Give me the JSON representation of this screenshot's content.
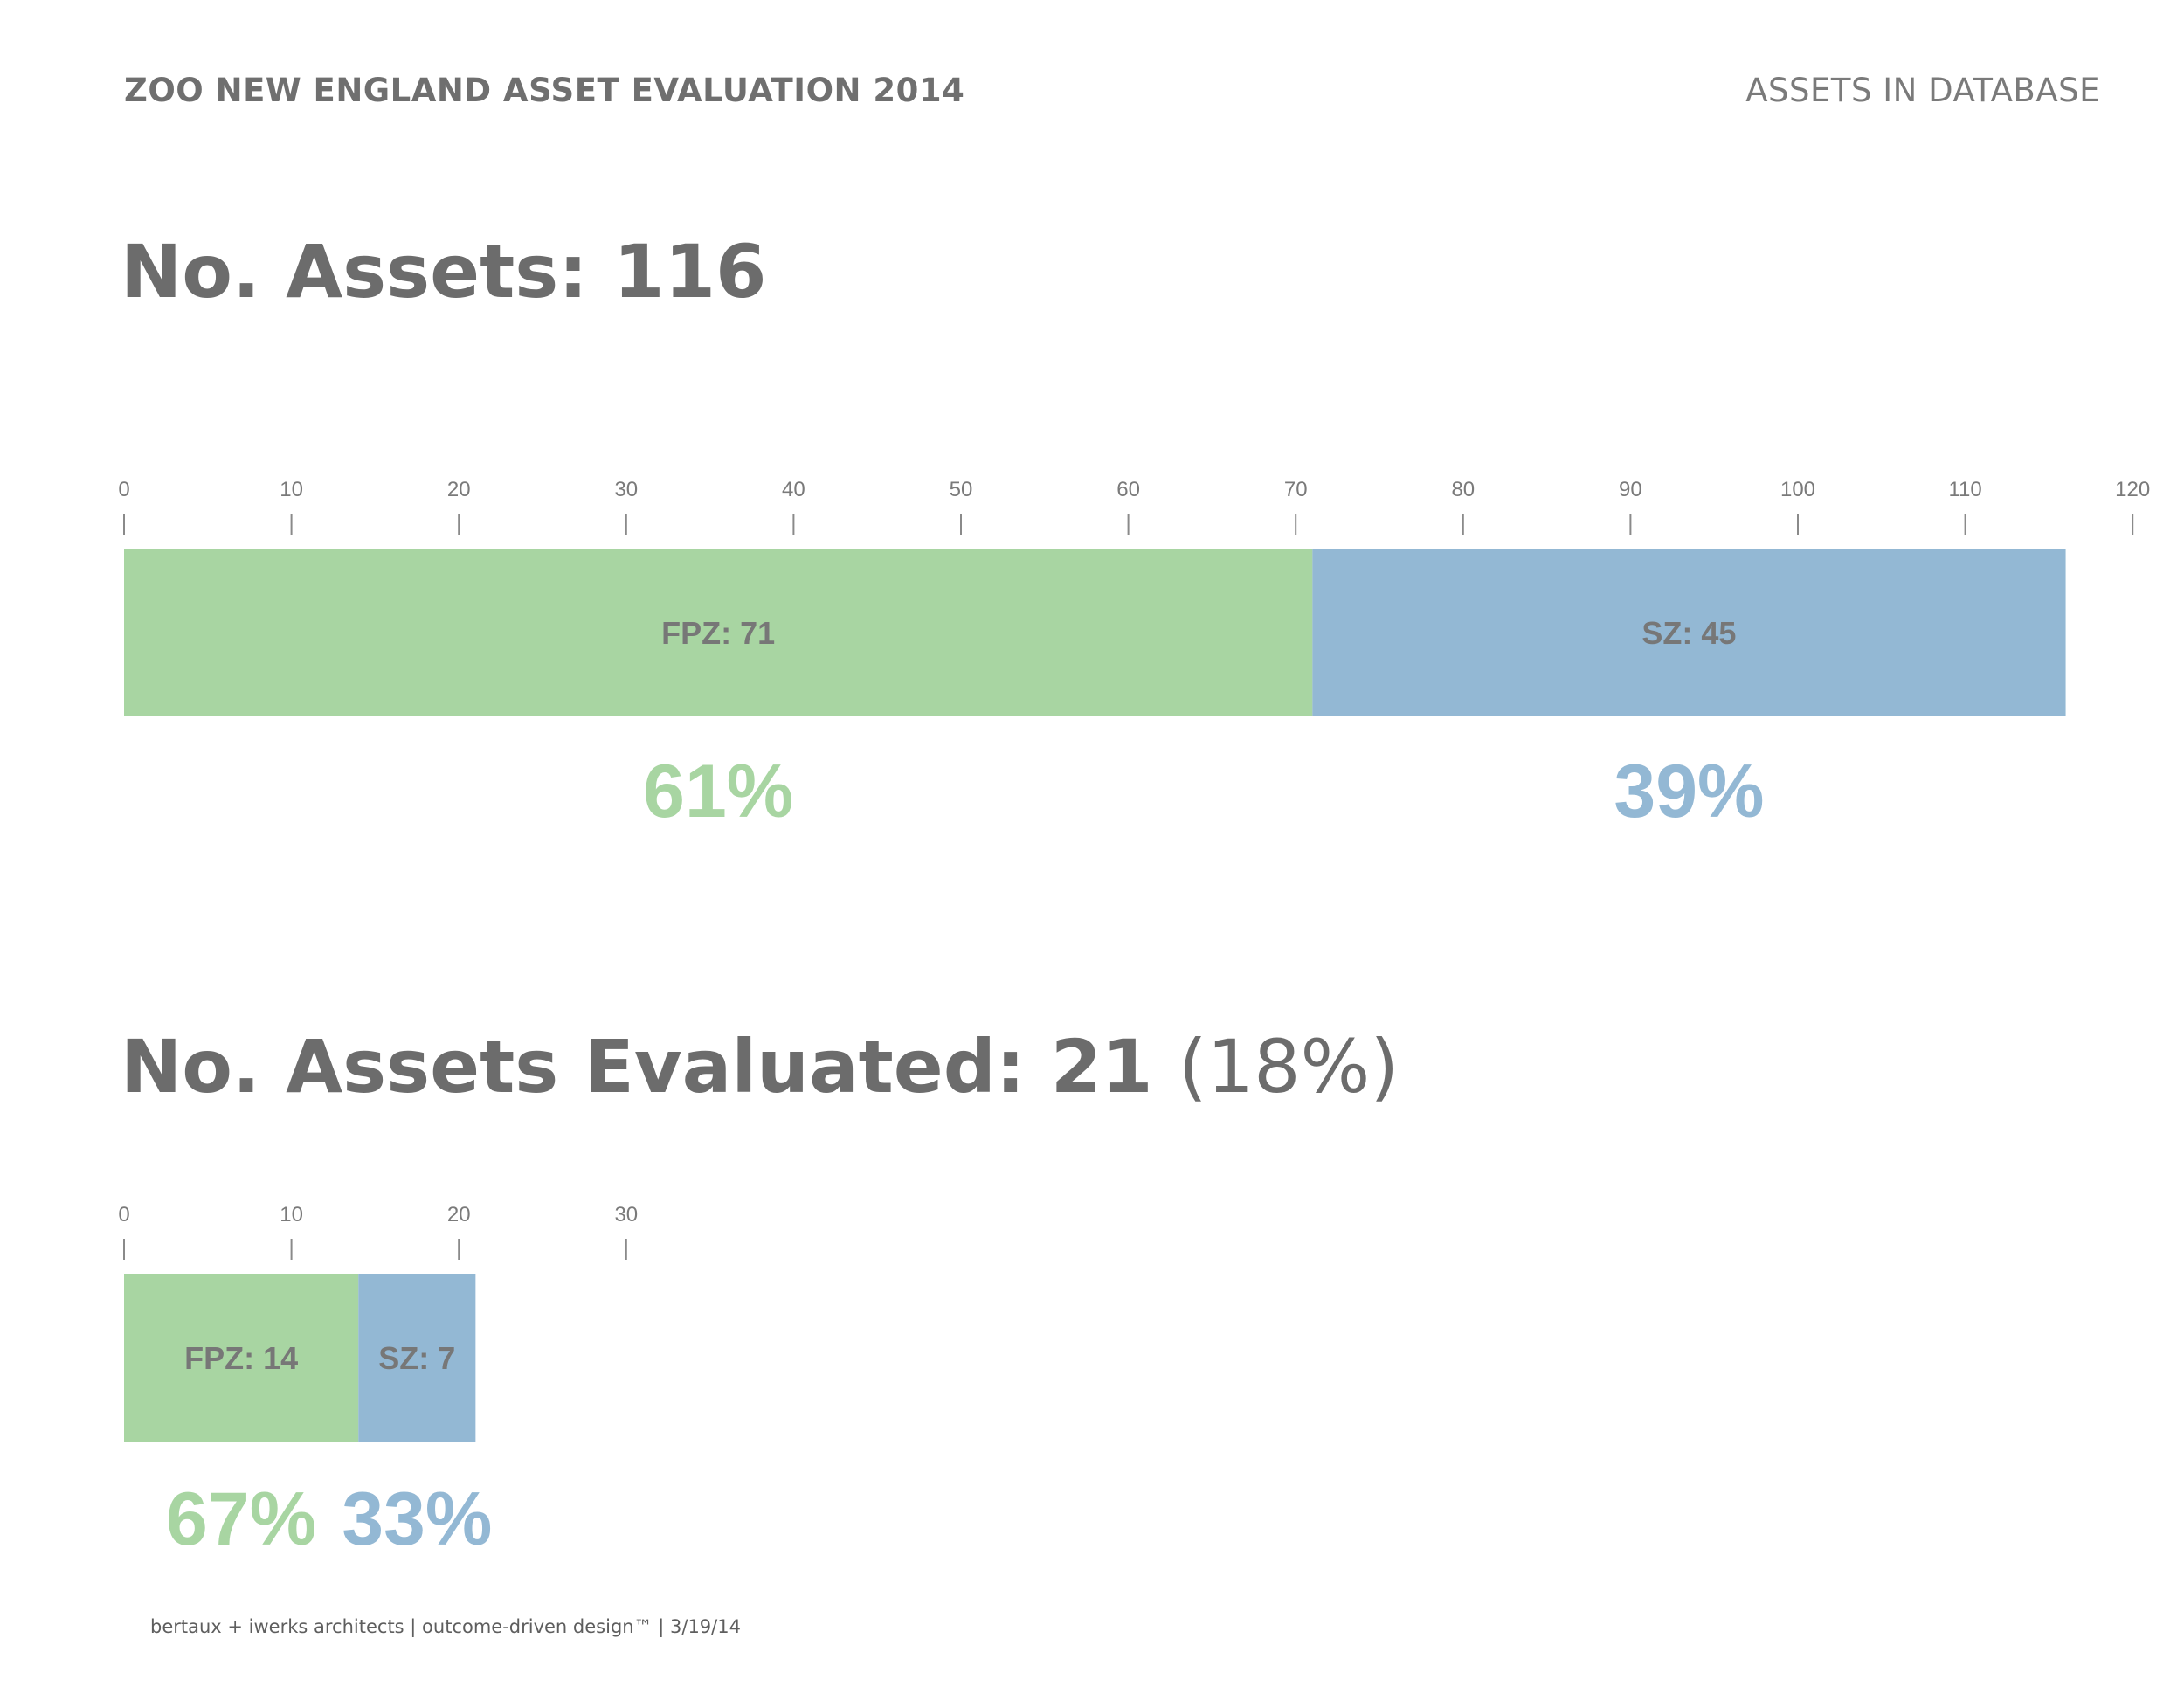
{
  "header": {
    "title": "ZOO NEW ENGLAND ASSET EVALUATION 2014",
    "section": "ASSETS IN DATABASE"
  },
  "section1": {
    "title": "No. Assets: 116"
  },
  "section2": {
    "title": "No. Assets Evaluated: 21",
    "percent": "(18%)"
  },
  "colors": {
    "fpz": "#a8d5a2",
    "sz": "#93b8d4",
    "text": "#6f6f6f"
  },
  "chart_data": [
    {
      "type": "bar",
      "orientation": "horizontal",
      "stacked": true,
      "xlim": [
        0,
        120
      ],
      "ticks": [
        0,
        10,
        20,
        30,
        40,
        50,
        60,
        70,
        80,
        90,
        100,
        110,
        120
      ],
      "series": [
        {
          "label": "FPZ: 71",
          "value": 71,
          "percent": "61%",
          "color": "#a8d5a2"
        },
        {
          "label": "SZ: 45",
          "value": 45,
          "percent": "39%",
          "color": "#93b8d4"
        }
      ]
    },
    {
      "type": "bar",
      "orientation": "horizontal",
      "stacked": true,
      "xlim": [
        0,
        30
      ],
      "ticks": [
        0,
        10,
        20,
        30
      ],
      "series": [
        {
          "label": "FPZ: 14",
          "value": 14,
          "percent": "67%",
          "color": "#a8d5a2"
        },
        {
          "label": "SZ: 7",
          "value": 7,
          "percent": "33%",
          "color": "#93b8d4"
        }
      ]
    }
  ],
  "footer": "bertaux + iwerks architects | outcome-driven design™ | 3/19/14"
}
